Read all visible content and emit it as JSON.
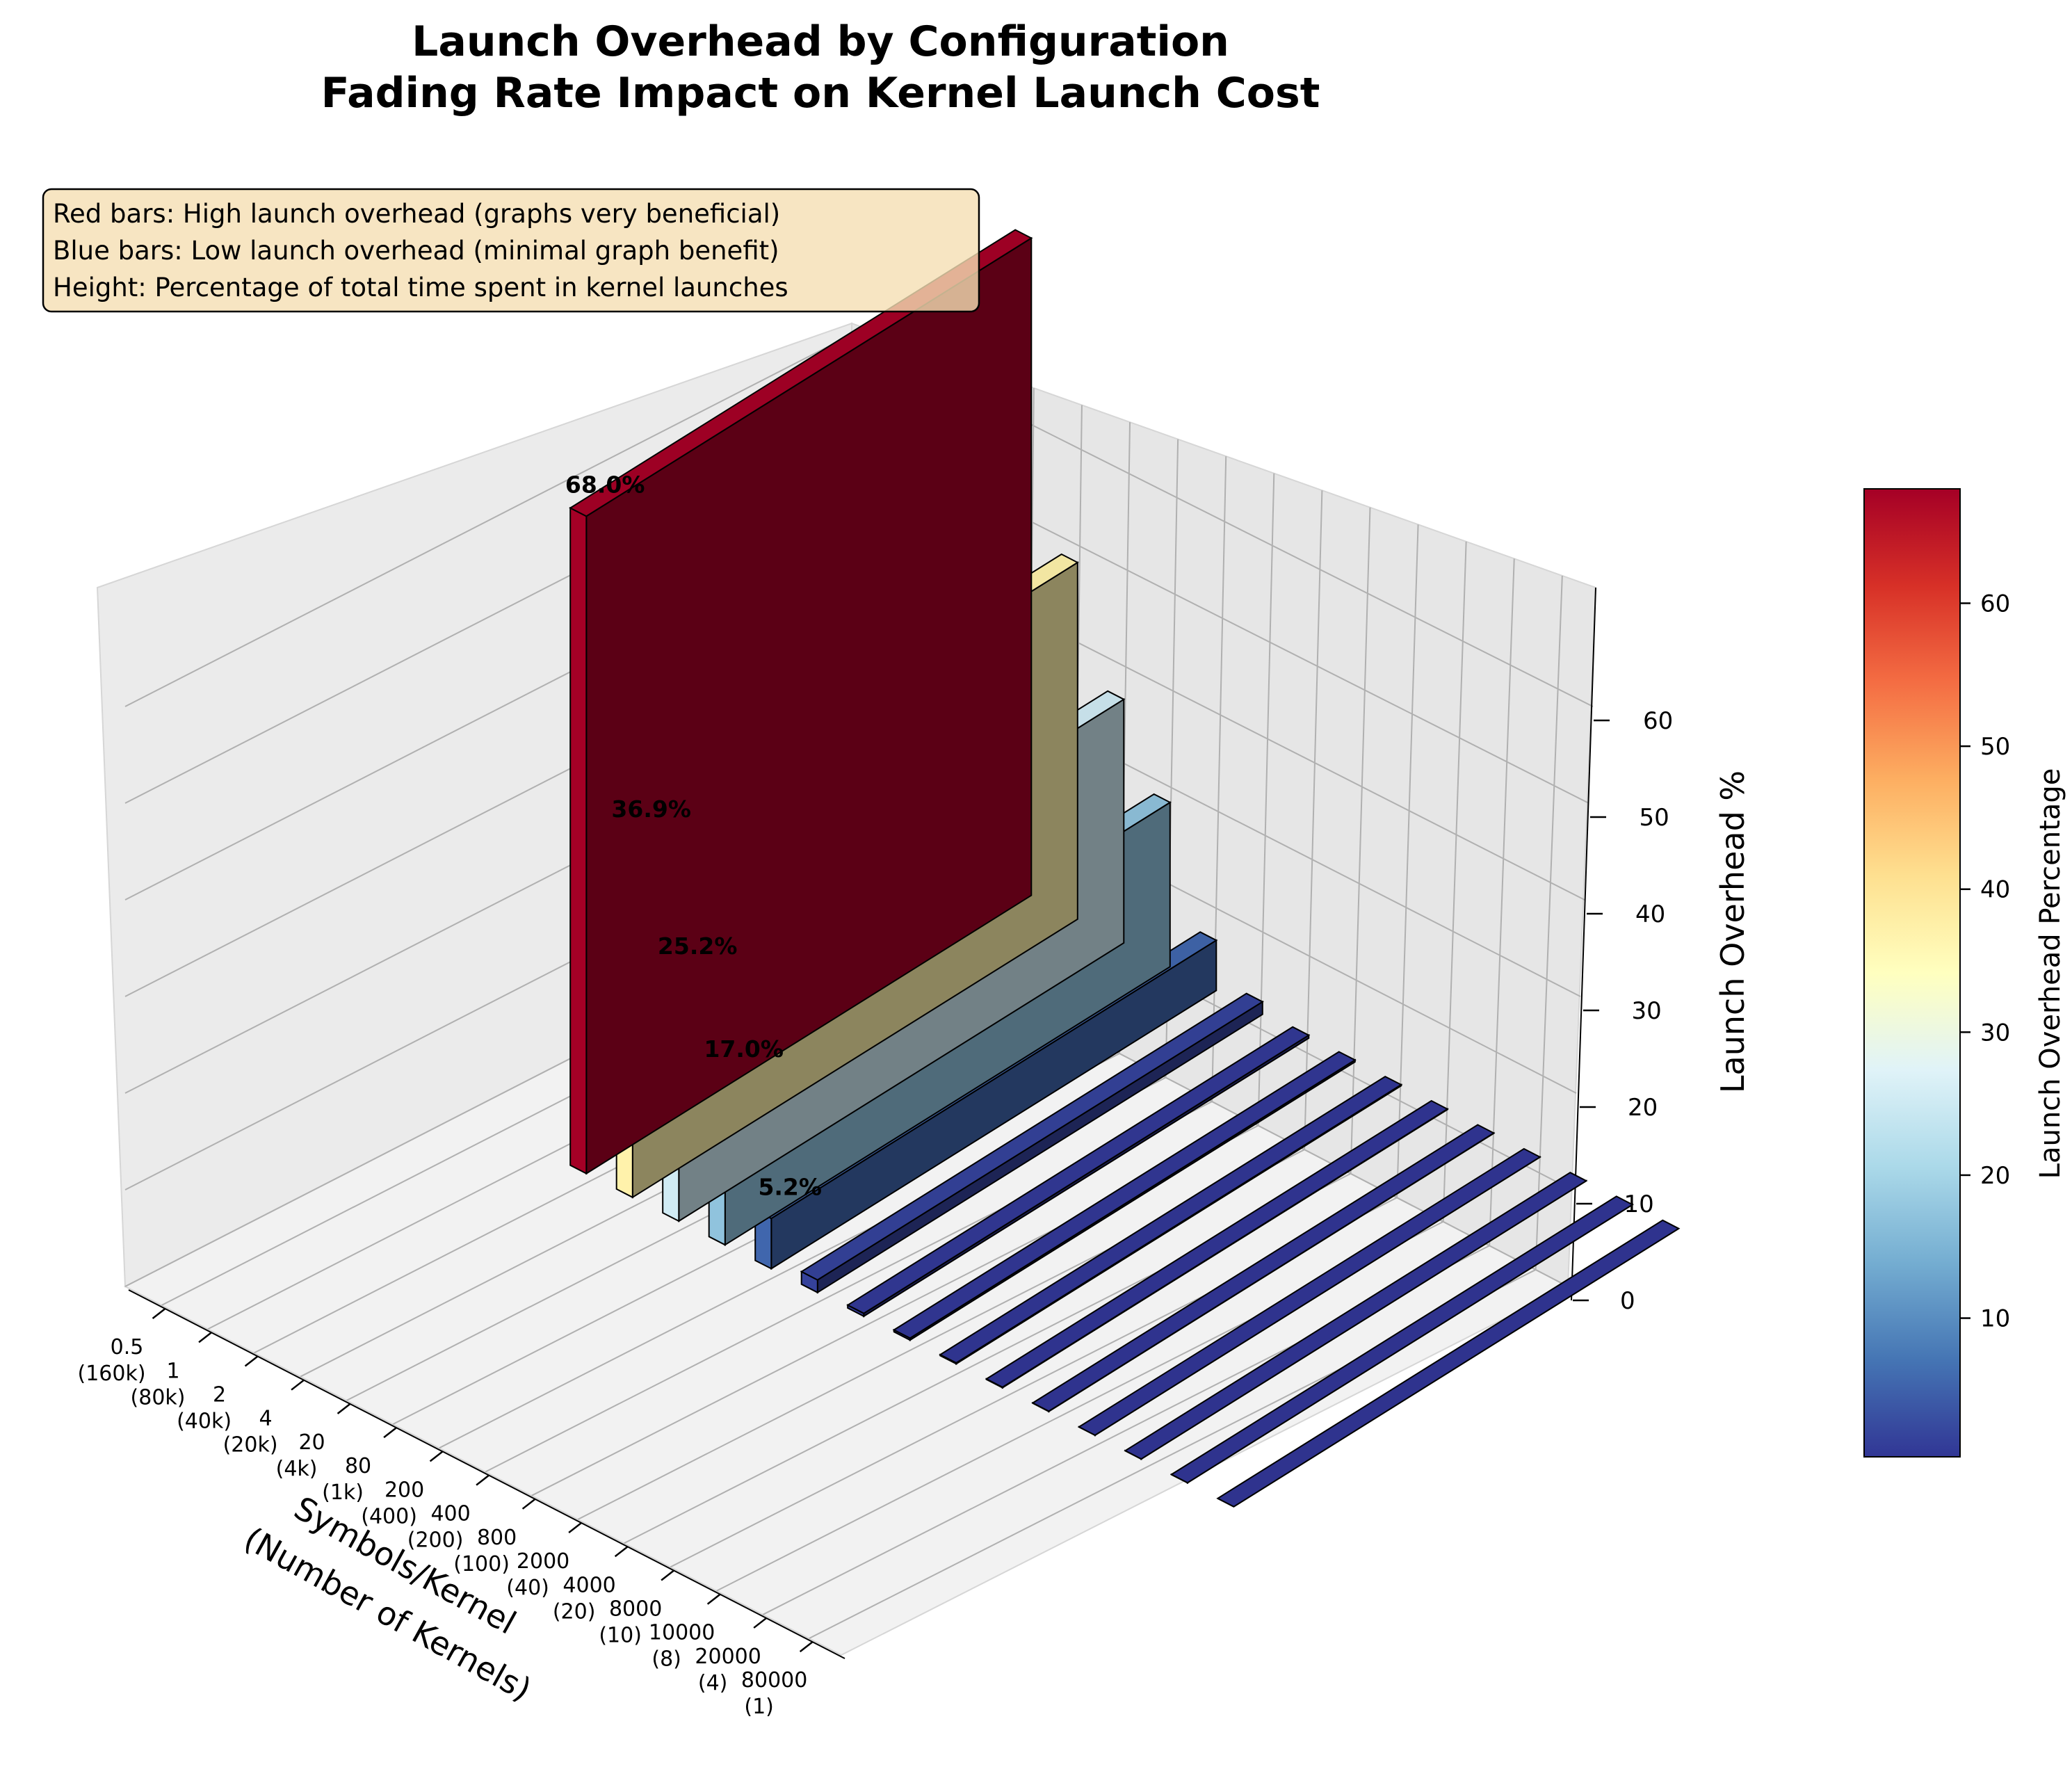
{
  "chart_data": {
    "type": "bar",
    "title_lines": [
      "Launch Overhead by Configuration",
      "Fading Rate Impact on Kernel Launch Cost"
    ],
    "xlabel_lines": [
      "Symbols/Kernel",
      "(Number of Kernels)"
    ],
    "zlabel": "Launch Overhead %",
    "colorbar_label": "Launch Overhead Percentage",
    "categories": [
      {
        "top": "0.5",
        "bottom": "(160k)"
      },
      {
        "top": "1",
        "bottom": "(80k)"
      },
      {
        "top": "2",
        "bottom": "(40k)"
      },
      {
        "top": "4",
        "bottom": "(20k)"
      },
      {
        "top": "20",
        "bottom": "(4k)"
      },
      {
        "top": "80",
        "bottom": "(1k)"
      },
      {
        "top": "200",
        "bottom": "(400)"
      },
      {
        "top": "400",
        "bottom": "(200)"
      },
      {
        "top": "800",
        "bottom": "(100)"
      },
      {
        "top": "2000",
        "bottom": "(40)"
      },
      {
        "top": "4000",
        "bottom": "(20)"
      },
      {
        "top": "8000",
        "bottom": "(10)"
      },
      {
        "top": "10000",
        "bottom": "(8)"
      },
      {
        "top": "20000",
        "bottom": "(4)"
      },
      {
        "top": "80000",
        "bottom": "(1)"
      }
    ],
    "values": [
      68.0,
      36.9,
      25.2,
      17.0,
      5.2,
      1.3,
      0.3,
      0.2,
      0.1,
      0.05,
      0.03,
      0.01,
      0.01,
      0.01,
      0.0
    ],
    "value_labels": [
      "68.0%",
      "36.9%",
      "25.2%",
      "17.0%",
      "5.2%",
      "",
      "",
      "",
      "",
      "",
      "",
      "",
      "",
      "",
      ""
    ],
    "zticks": [
      "0",
      "10",
      "20",
      "30",
      "40",
      "50",
      "60"
    ],
    "zlim": [
      0,
      68
    ],
    "colorbar_ticks": [
      "10",
      "20",
      "30",
      "40",
      "50",
      "60"
    ],
    "colormap": "RdYlBu_r",
    "colormap_stops": [
      "#313695",
      "#4575b4",
      "#74add1",
      "#abd9e9",
      "#e0f3f8",
      "#ffffbf",
      "#fee090",
      "#fdae61",
      "#f46d43",
      "#d73027",
      "#a50026"
    ],
    "grid": true,
    "annotation": [
      "Red bars: High launch overhead (graphs very beneficial)",
      "Blue bars: Low launch overhead (minimal graph benefit)",
      "Height: Percentage of total time spent in kernel launches"
    ]
  }
}
